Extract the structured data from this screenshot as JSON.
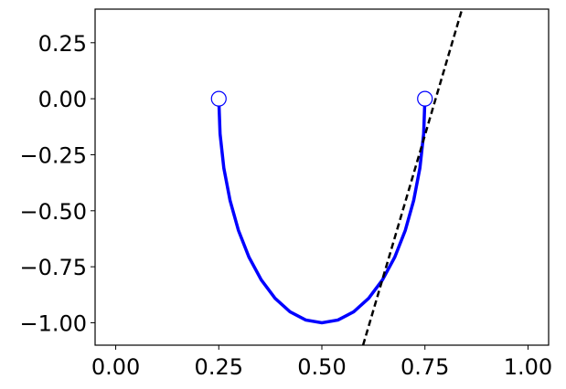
{
  "chart_data": {
    "type": "line",
    "xlim": [
      -0.05,
      1.05
    ],
    "ylim": [
      -1.1,
      0.4
    ],
    "xticks": [
      {
        "value": 0,
        "label": "0.00"
      },
      {
        "value": 0.25,
        "label": "0.25"
      },
      {
        "value": 0.5,
        "label": "0.50"
      },
      {
        "value": 0.75,
        "label": "0.75"
      },
      {
        "value": 1,
        "label": "1.00"
      }
    ],
    "yticks": [
      {
        "value": 0.25,
        "label": "0.25"
      },
      {
        "value": 0,
        "label": "0.00"
      },
      {
        "value": -0.25,
        "label": "−0.25"
      },
      {
        "value": -0.5,
        "label": "−0.50"
      },
      {
        "value": -0.75,
        "label": "−0.75"
      },
      {
        "value": -1,
        "label": "−1.00"
      }
    ],
    "grid": false,
    "series": [
      {
        "color": "#0000ff",
        "linewidth": 3.5,
        "linestyle": "solid",
        "x": [
          0.25,
          0.2531,
          0.2622,
          0.2773,
          0.2977,
          0.3232,
          0.3531,
          0.3865,
          0.4227,
          0.4609,
          0.5,
          0.5391,
          0.5773,
          0.6135,
          0.6469,
          0.6768,
          0.7023,
          0.7227,
          0.7378,
          0.7469,
          0.75
        ],
        "values": [
          0,
          -0.1564,
          -0.309,
          -0.454,
          -0.5878,
          -0.7071,
          -0.809,
          -0.891,
          -0.9511,
          -0.9877,
          -1,
          -0.9877,
          -0.9511,
          -0.891,
          -0.809,
          -0.7071,
          -0.5878,
          -0.454,
          -0.309,
          -0.1564,
          0
        ]
      },
      {
        "color": "#000000",
        "linewidth": 2.5,
        "linestyle": "dashed",
        "x": [
          0.6,
          0.84
        ],
        "values": [
          -1.1,
          0.4
        ]
      },
      {
        "color": "#0000ff",
        "linestyle": "none",
        "marker": "o",
        "markerfacecolor": "#ffffff",
        "x": [
          0.25,
          0.75
        ],
        "values": [
          0,
          0
        ]
      }
    ]
  }
}
